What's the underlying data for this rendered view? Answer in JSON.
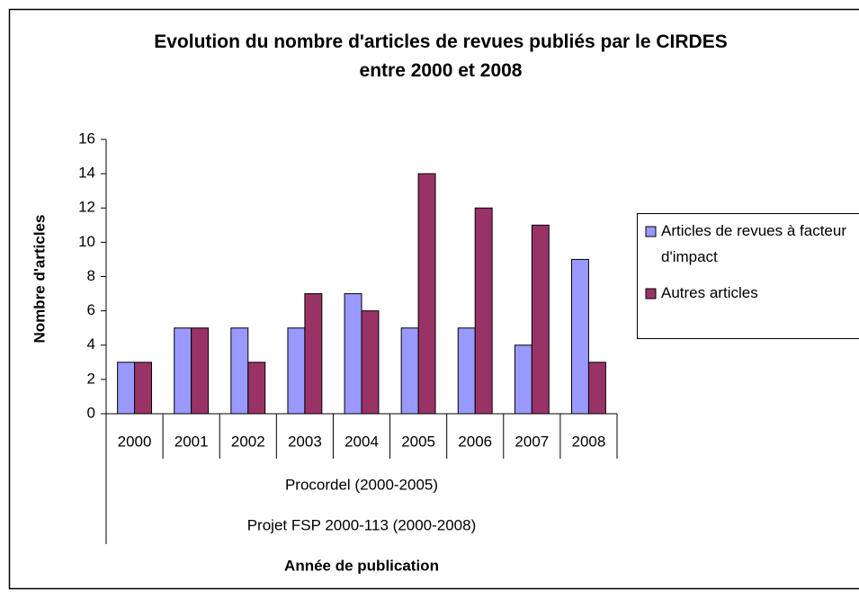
{
  "chart_data": {
    "type": "bar",
    "title": "Evolution du nombre d'articles de revues publiés par le CIRDES entre 2000 et 2008",
    "categories": [
      "2000",
      "2001",
      "2002",
      "2003",
      "2004",
      "2005",
      "2006",
      "2007",
      "2008"
    ],
    "category_levels": [
      "Procordel (2000-2005)",
      "Projet FSP 2000-113 (2000-2008)"
    ],
    "series": [
      {
        "name": "Articles de revues à facteur d'impact",
        "color": "#9999ff",
        "values": [
          3,
          5,
          5,
          5,
          7,
          5,
          5,
          4,
          9
        ]
      },
      {
        "name": "Autres articles",
        "color": "#993366",
        "values": [
          3,
          5,
          3,
          7,
          6,
          14,
          12,
          11,
          3
        ]
      }
    ],
    "x_label": "Année de publication",
    "y_label": "Nombre d'articles",
    "ylim": [
      0,
      16
    ],
    "yticks": [
      0,
      2,
      4,
      6,
      8,
      10,
      12,
      14,
      16
    ],
    "grid": false,
    "legend": "right"
  }
}
